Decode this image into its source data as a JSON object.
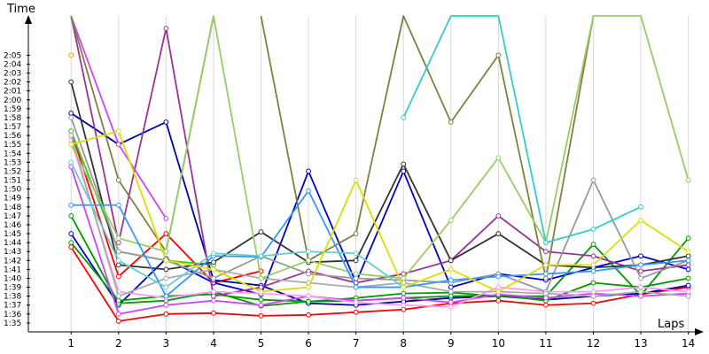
{
  "chart_data": {
    "type": "line",
    "title": "",
    "xlabel": "Laps",
    "ylabel": "Time",
    "x": [
      1,
      2,
      3,
      4,
      5,
      6,
      7,
      8,
      9,
      10,
      11,
      12,
      13,
      14
    ],
    "xlim": [
      0.1,
      14.1
    ],
    "ylim_seconds": [
      94,
      129
    ],
    "y_tick_labels": [
      "1:35",
      "1:36",
      "1:37",
      "1:38",
      "1:39",
      "1:40",
      "1:41",
      "1:42",
      "1:43",
      "1:44",
      "1:45",
      "1:46",
      "1:47",
      "1:48",
      "1:49",
      "1:50",
      "1:51",
      "1:52",
      "1:53",
      "1:54",
      "1:55",
      "1:56",
      "1:57",
      "1:58",
      "1:59",
      "2:00",
      "2:01",
      "2:02",
      "2:03",
      "2:04",
      "2:05"
    ],
    "grid": "vertical",
    "series": [
      {
        "color": "#ff0000",
        "values": [
          "1:43.5",
          "1:35.2",
          "1:36.0",
          "1:36.1",
          "1:35.8",
          "1:35.9",
          "1:36.2",
          "1:36.5",
          "1:37.2",
          "1:37.5",
          "1:37.0",
          "1:37.2",
          "1:38.2",
          "1:39.0"
        ]
      },
      {
        "color": "#ff0000",
        "values": [
          "1:56.5",
          "1:40.2",
          "1:45.0",
          "1:39.5",
          "1:40.8",
          null,
          null,
          null,
          null,
          null,
          null,
          null,
          null,
          null
        ]
      },
      {
        "color": "#0000cc",
        "values": [
          "1:45.0",
          "1:37.0",
          "1:42.2",
          "1:39.5",
          "1:38.2",
          "1:52.0",
          "1:39.5",
          "1:52.0",
          "1:39.0",
          "1:40.5",
          "1:39.8",
          "1:41.2",
          "1:42.5",
          "1:41.0"
        ]
      },
      {
        "color": "#0000aa",
        "values": [
          "1:58.5",
          "1:55.0",
          "1:57.5",
          "1:39.8",
          "1:39.2",
          "1:37.2",
          "1:37.0",
          "1:37.4",
          "1:37.8",
          "1:38.0",
          "1:37.6",
          "1:38.0",
          "1:38.3",
          "1:39.2"
        ]
      },
      {
        "color": "#009900",
        "values": [
          "1:47.0",
          "1:37.2",
          "1:37.5",
          "1:38.5",
          "1:36.9",
          "1:37.4",
          "1:37.8",
          "1:38.3",
          "1:38.4",
          "1:38.0",
          "1:38.0",
          "1:43.8",
          "1:38.1",
          "1:44.5"
        ]
      },
      {
        "color": "#009900",
        "values": [
          "1:44.0",
          "1:37.5",
          "1:38.0",
          "1:38.2",
          "1:37.6",
          "1:37.4",
          "1:37.5",
          "1:37.8",
          "1:38.0",
          "1:38.1",
          "1:37.5",
          "1:39.5",
          "1:39.0",
          "1:40.0"
        ]
      },
      {
        "color": "#33cc33",
        "values": [
          "1:56.5",
          "1:43.0",
          "1:42.0",
          "1:41.5",
          null,
          null,
          null,
          null,
          null,
          null,
          null,
          null,
          null,
          null
        ]
      },
      {
        "color": "#993399",
        "values": [
          "2:10.0",
          "1:44.0",
          "2:08.0",
          "1:38.0",
          "1:39.0",
          "1:40.8",
          "1:39.5",
          "1:40.5",
          "1:42.0",
          "1:47.0",
          "1:43.0",
          "1:42.5",
          "1:40.8",
          "1:41.5"
        ]
      },
      {
        "color": "#cc44ff",
        "values": [
          "2:10.0",
          "1:55.0",
          "1:46.7",
          null,
          null,
          null,
          null,
          null,
          null,
          null,
          null,
          null,
          null,
          null
        ]
      },
      {
        "color": "#cc44ff",
        "values": [
          "1:52.5",
          "1:36.0",
          "1:37.0",
          "1:37.5",
          "1:37.0",
          "1:38.0",
          "1:37.5",
          "1:37.8",
          "1:37.3",
          "1:38.2",
          "1:37.8",
          "1:38.3",
          "1:38.0",
          "1:38.3"
        ]
      },
      {
        "color": "#ff99ff",
        "values": [
          "1:55.5",
          "1:38.5",
          "1:37.8",
          "1:38.5",
          "1:38.3",
          "1:38.0",
          "1:37.3",
          "1:37.0",
          "1:36.8",
          "1:39.0",
          "1:38.5",
          "1:38.5",
          "1:39.0",
          "1:38.5"
        ]
      },
      {
        "color": "#333333",
        "values": [
          "2:02.0",
          "1:41.5",
          "1:41.0",
          "1:41.8",
          "1:45.2",
          "1:41.8",
          "1:42.0",
          "1:52.8",
          "1:42.0",
          "1:45.0",
          "1:41.5",
          "1:41.2",
          "1:41.5",
          "1:42.5"
        ]
      },
      {
        "color": "#999999",
        "values": [
          "1:58.0",
          "1:43.0",
          "1:42.0",
          "1:40.0",
          "1:42.5",
          "1:40.5",
          "1:40.0",
          "1:39.8",
          "1:39.5",
          "1:40.5",
          "1:38.5",
          "1:51.0",
          "1:40.0",
          "1:42.0"
        ]
      },
      {
        "color": "#aaaaaa",
        "values": [
          "1:56.0",
          "1:38.0",
          "1:40.0",
          "1:41.0",
          "1:40.0",
          "1:39.5",
          "1:39.0",
          "1:39.5",
          "1:38.5",
          "1:38.5",
          "1:38.3",
          "1:38.0",
          "1:38.5",
          "1:38.0"
        ]
      },
      {
        "color": "#808040",
        "values": [
          "2:10.0",
          "1:51.0",
          "1:43.0",
          "2:10.0",
          null,
          null,
          null,
          null,
          null,
          null,
          null,
          null,
          null,
          null
        ]
      },
      {
        "color": "#808040",
        "values": [
          null,
          null,
          null,
          null,
          "2:10.0",
          "1:42.0",
          "1:45.0",
          "2:10.0",
          "1:57.5",
          "2:05.0",
          "1:40.0",
          "2:10.0",
          null,
          null
        ]
      },
      {
        "color": "#99cc66",
        "values": [
          "1:55.0",
          "1:44.5",
          "1:43.0",
          "2:10.0",
          "1:40.0",
          "1:42.0",
          "1:40.5",
          "1:40.0",
          "1:46.5",
          "1:53.5",
          "1:44.0",
          "2:10.0",
          "2:10.0",
          "1:51.0"
        ]
      },
      {
        "color": "#33cccc",
        "values": [
          null,
          null,
          null,
          null,
          null,
          null,
          null,
          "1:58.0",
          "2:10.0",
          "2:10.0",
          "1:44.0",
          "1:45.5",
          "1:48.0",
          null
        ]
      },
      {
        "color": "#3399ff",
        "values": [
          "1:48.2",
          "1:48.2",
          "1:38.0",
          "1:42.5",
          "1:42.4",
          "1:49.8",
          "1:39.0",
          "1:39.0",
          "1:39.8",
          "1:40.2",
          "1:40.5",
          "1:40.8",
          "1:41.5",
          "1:42.0"
        ]
      },
      {
        "color": "#66cccc",
        "values": [
          "1:53.0",
          "1:42.0",
          "1:39.0",
          "1:42.8",
          "1:42.5",
          "1:43.0",
          "1:42.8",
          "1:39.0",
          null,
          null,
          null,
          null,
          null,
          null
        ]
      },
      {
        "color": "#dddd00",
        "values": [
          "1:55.0",
          "1:56.5",
          "1:42.0",
          "1:41.0",
          "1:38.5",
          "1:39.0",
          "1:51.0",
          "1:39.0",
          "1:41.0",
          "1:38.5",
          "1:41.5",
          "1:41.5",
          "1:46.5",
          "1:43.0"
        ]
      },
      {
        "color": "#ff9900",
        "values": [
          "2:05.0",
          null,
          null,
          null,
          null,
          null,
          null,
          null,
          null,
          null,
          null,
          null,
          null,
          null
        ]
      }
    ]
  }
}
